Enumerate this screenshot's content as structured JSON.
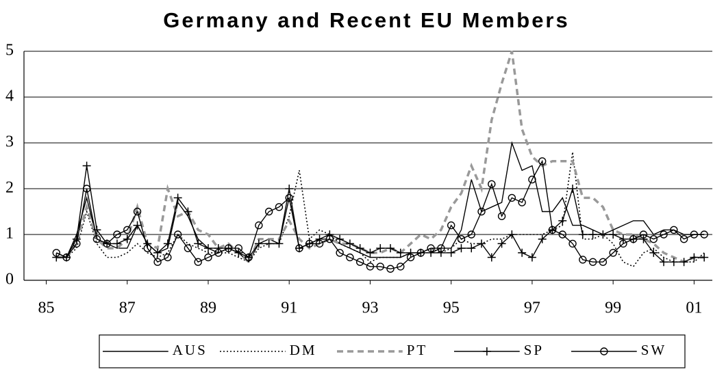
{
  "chart_data": {
    "type": "line",
    "title": "Germany and Recent EU Members",
    "x": [
      1985.25,
      1985.5,
      1985.75,
      1986,
      1986.25,
      1986.5,
      1986.75,
      1987,
      1987.25,
      1987.5,
      1987.75,
      1988,
      1988.25,
      1988.5,
      1988.75,
      1989,
      1989.25,
      1989.5,
      1989.75,
      1990,
      1990.25,
      1990.5,
      1990.75,
      1991,
      1991.25,
      1991.5,
      1991.75,
      1992,
      1992.25,
      1992.5,
      1992.75,
      1993,
      1993.25,
      1993.5,
      1993.75,
      1994,
      1994.25,
      1994.5,
      1994.75,
      1995,
      1995.25,
      1995.5,
      1995.75,
      1996,
      1996.25,
      1996.5,
      1996.75,
      1997,
      1997.25,
      1997.5,
      1997.75,
      1998,
      1998.25,
      1998.5,
      1998.75,
      1999,
      1999.25,
      1999.5,
      1999.75,
      2000,
      2000.25,
      2000.5,
      2000.75,
      2001,
      2001.25
    ],
    "series": [
      {
        "name": "AUS",
        "color": "#000000",
        "dash": "solid",
        "values": [
          0.6,
          0.5,
          1.0,
          1.8,
          0.9,
          0.8,
          0.7,
          0.7,
          1.2,
          0.8,
          0.6,
          0.7,
          1.7,
          1.4,
          0.9,
          0.7,
          0.6,
          0.7,
          0.6,
          0.4,
          0.8,
          0.9,
          0.8,
          1.8,
          0.7,
          0.8,
          0.9,
          0.9,
          0.8,
          0.7,
          0.6,
          0.5,
          0.5,
          0.5,
          0.5,
          0.6,
          0.6,
          0.6,
          0.7,
          0.7,
          1.1,
          2.2,
          1.5,
          1.6,
          1.7,
          3.0,
          2.4,
          2.5,
          1.5,
          1.5,
          1.8,
          1.2,
          1.2,
          1.1,
          1.0,
          1.1,
          1.2,
          1.3,
          1.3,
          1.0,
          1.1,
          1.1,
          1.0,
          1.0,
          1.0
        ]
      },
      {
        "name": "DM",
        "color": "#000000",
        "dash": "dotted",
        "values": [
          0.5,
          0.5,
          0.7,
          1.5,
          0.8,
          0.5,
          0.5,
          0.6,
          0.8,
          0.6,
          0.5,
          0.6,
          1.0,
          0.8,
          0.7,
          0.6,
          0.6,
          0.6,
          0.5,
          0.4,
          0.7,
          0.8,
          0.8,
          1.4,
          2.4,
          0.9,
          1.1,
          1.0,
          0.8,
          0.7,
          0.6,
          0.4,
          0.5,
          0.5,
          0.5,
          0.6,
          0.6,
          0.7,
          0.6,
          0.7,
          0.9,
          0.8,
          0.8,
          0.9,
          0.9,
          1.0,
          1.0,
          1.0,
          1.0,
          1.1,
          1.2,
          2.8,
          0.9,
          0.9,
          1.0,
          0.8,
          0.4,
          0.3,
          0.6,
          0.7,
          0.5,
          0.4,
          0.4,
          0.4,
          0.6
        ]
      },
      {
        "name": "PT",
        "color": "#999999",
        "dash": "dashed",
        "values": [
          0.5,
          0.5,
          0.8,
          1.6,
          0.9,
          0.7,
          0.7,
          0.9,
          1.6,
          0.8,
          0.7,
          2.0,
          1.4,
          1.5,
          1.1,
          1.0,
          0.7,
          0.8,
          0.6,
          0.4,
          0.9,
          0.9,
          0.9,
          1.3,
          0.9,
          0.7,
          0.8,
          0.9,
          0.8,
          0.8,
          0.7,
          0.6,
          0.6,
          0.7,
          0.6,
          0.8,
          1.0,
          0.9,
          1.1,
          1.6,
          1.9,
          2.5,
          2.0,
          3.5,
          4.3,
          5.0,
          3.3,
          2.7,
          2.5,
          2.6,
          2.6,
          2.6,
          1.8,
          1.8,
          1.6,
          1.1,
          1.0,
          1.0,
          0.9,
          0.8,
          0.6,
          0.5,
          0.4,
          0.5,
          0.5
        ]
      },
      {
        "name": "SP",
        "color": "#000000",
        "dash": "solid",
        "marker": "plus",
        "values": [
          0.5,
          0.5,
          0.9,
          2.5,
          1.1,
          0.8,
          0.8,
          0.9,
          1.2,
          0.8,
          0.6,
          0.8,
          1.8,
          1.5,
          0.8,
          0.7,
          0.7,
          0.7,
          0.6,
          0.5,
          0.8,
          0.8,
          0.8,
          2.0,
          0.7,
          0.8,
          0.9,
          1.0,
          0.9,
          0.8,
          0.7,
          0.6,
          0.7,
          0.7,
          0.6,
          0.6,
          0.6,
          0.6,
          0.6,
          0.6,
          0.7,
          0.7,
          0.8,
          0.5,
          0.8,
          1.0,
          0.6,
          0.5,
          0.9,
          1.1,
          1.3,
          2.0,
          1.0,
          1.0,
          1.0,
          1.0,
          0.9,
          0.9,
          0.9,
          0.6,
          0.4,
          0.4,
          0.4,
          0.5,
          0.5
        ]
      },
      {
        "name": "SW",
        "color": "#000000",
        "dash": "solid",
        "marker": "circle",
        "values": [
          0.6,
          0.5,
          0.8,
          2.0,
          0.9,
          0.8,
          1.0,
          1.1,
          1.5,
          0.7,
          0.4,
          0.5,
          1.0,
          0.7,
          0.4,
          0.5,
          0.6,
          0.7,
          0.7,
          0.5,
          1.2,
          1.5,
          1.6,
          1.8,
          0.7,
          0.8,
          0.8,
          0.9,
          0.6,
          0.5,
          0.4,
          0.3,
          0.3,
          0.25,
          0.3,
          0.5,
          0.6,
          0.7,
          0.7,
          1.2,
          0.9,
          1.0,
          1.5,
          2.1,
          1.4,
          1.8,
          1.7,
          2.2,
          2.6,
          1.1,
          1.0,
          0.8,
          0.45,
          0.4,
          0.4,
          0.6,
          0.8,
          0.9,
          1.0,
          0.9,
          1.0,
          1.1,
          0.9,
          1.0,
          1.0
        ]
      }
    ],
    "xlim": [
      1984.45,
      2001.45
    ],
    "xticks": [
      {
        "value": 1985,
        "label": "85"
      },
      {
        "value": 1987,
        "label": "87"
      },
      {
        "value": 1989,
        "label": "89"
      },
      {
        "value": 1991,
        "label": "91"
      },
      {
        "value": 1993,
        "label": "93"
      },
      {
        "value": 1995,
        "label": "95"
      },
      {
        "value": 1997,
        "label": "97"
      },
      {
        "value": 1999,
        "label": "99"
      },
      {
        "value": 2001,
        "label": "01"
      }
    ],
    "ylim": [
      0,
      5
    ],
    "yticks": [
      0,
      1,
      2,
      3,
      4,
      5
    ],
    "grid": true,
    "legend": "bottom"
  }
}
